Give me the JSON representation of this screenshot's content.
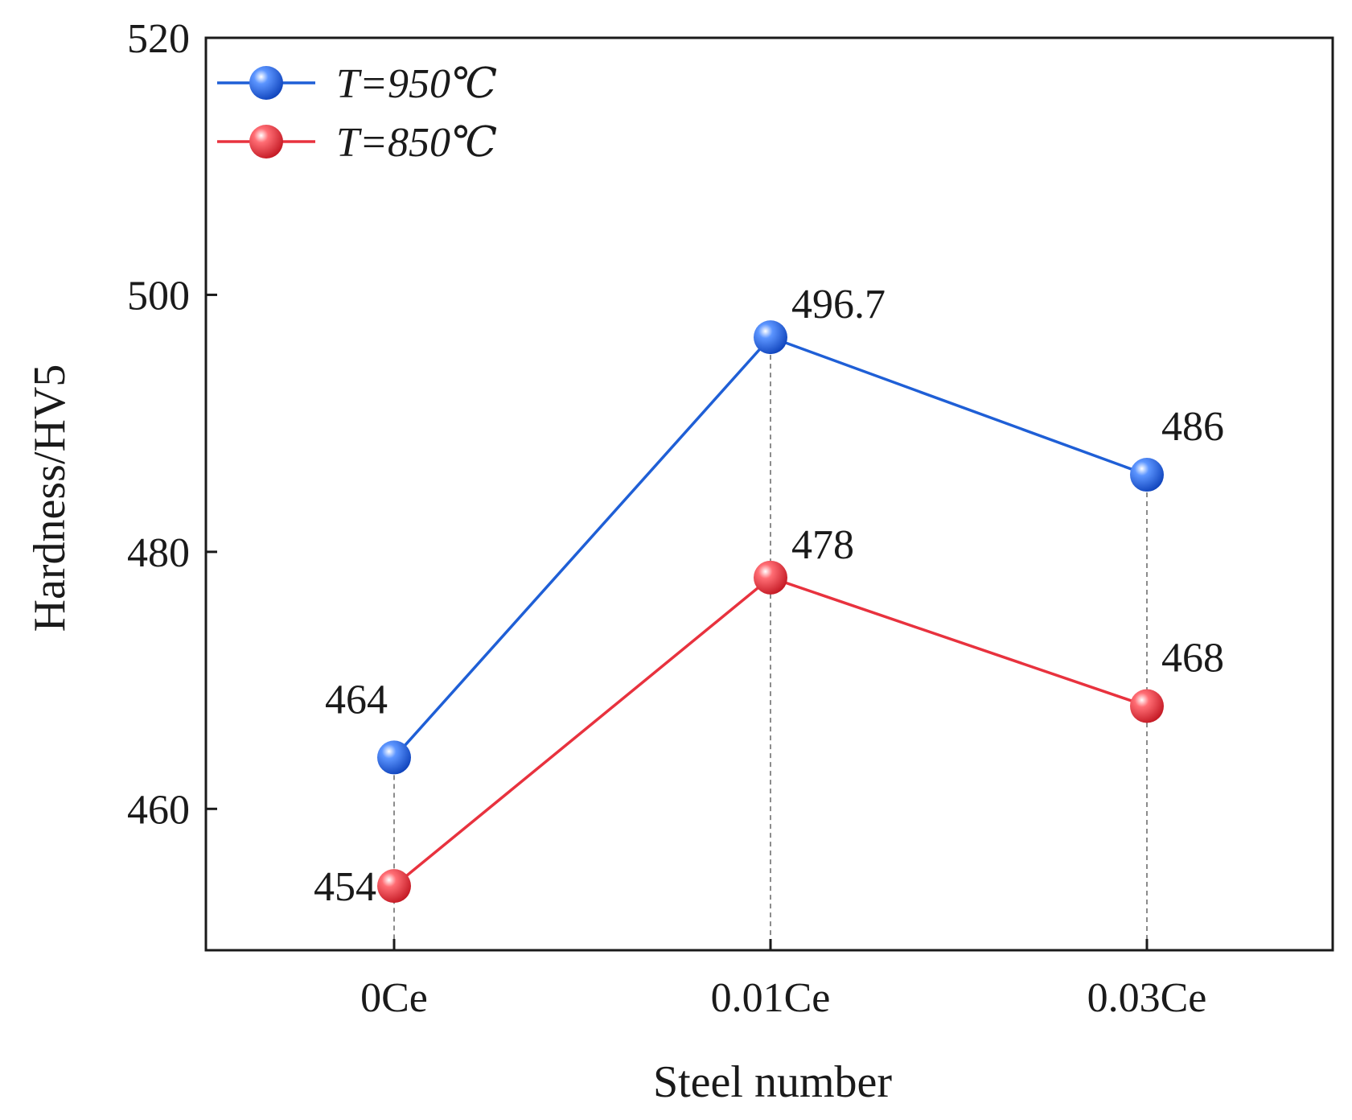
{
  "chart_data": {
    "type": "line",
    "xlabel": "Steel number",
    "ylabel": "Hardness/HV5",
    "categories": [
      "0Ce",
      "0.01Ce",
      "0.03Ce"
    ],
    "ylim": [
      449,
      520
    ],
    "yticks": [
      460,
      480,
      500,
      520
    ],
    "grid": false,
    "vertical_guides": "dashed",
    "legend_position": "top-left",
    "series": [
      {
        "name_var": "T",
        "name_rest": "=950℃",
        "values": [
          464,
          496.7,
          486
        ],
        "labels": [
          "464",
          "496.7",
          "486"
        ],
        "color": "#1f5fd6"
      },
      {
        "name_var": "T",
        "name_rest": "=850℃",
        "values": [
          454,
          478,
          468
        ],
        "labels": [
          "454",
          "478",
          "468"
        ],
        "color": "#e8323e"
      }
    ]
  }
}
